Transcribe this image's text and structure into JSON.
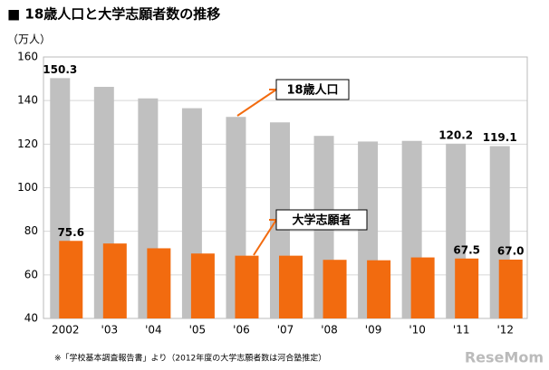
{
  "chart_data": {
    "type": "bar",
    "title": "■ 18歳人口と大学志願者数の推移",
    "y_label": "（万人）",
    "categories": [
      "2002",
      "'03",
      "'04",
      "'05",
      "'06",
      "'07",
      "'08",
      "'09",
      "'10",
      "'11",
      "'12"
    ],
    "series": [
      {
        "name": "18歳人口",
        "color": "#c0c0c0",
        "values": [
          150.3,
          146.3,
          141,
          136.5,
          132.5,
          130,
          123.8,
          121.2,
          121.5,
          120.2,
          119.1
        ],
        "value_labels": [
          "150.3",
          null,
          null,
          null,
          null,
          null,
          null,
          null,
          null,
          "120.2",
          "119.1"
        ]
      },
      {
        "name": "大学志願者",
        "color": "#f26b0f",
        "values": [
          75.6,
          74.4,
          72.2,
          69.8,
          68.8,
          68.8,
          66.9,
          66.7,
          68,
          67.5,
          67.0
        ],
        "value_labels": [
          "75.6",
          null,
          null,
          null,
          null,
          null,
          null,
          null,
          null,
          "67.5",
          "67.0"
        ]
      }
    ],
    "ylim": [
      40,
      160
    ],
    "yticks": [
      40,
      60,
      80,
      100,
      120,
      140,
      160
    ],
    "grid": true,
    "footnote": "※「学校基本調査報告書」より（2012年度の大学志願者数は河合塾推定）",
    "watermark": "ReseMom"
  }
}
